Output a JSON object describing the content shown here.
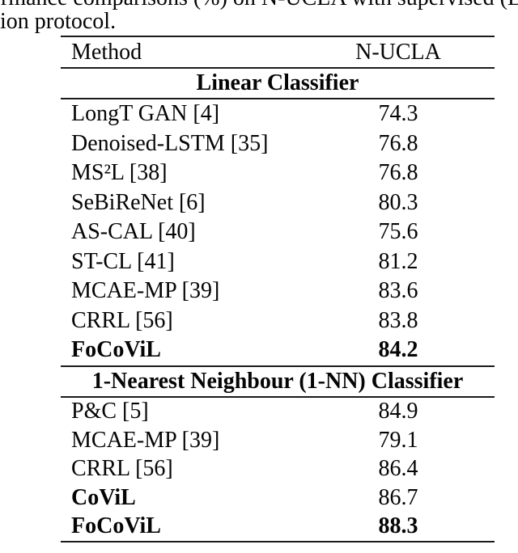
{
  "caption": {
    "line1": "rmance comparisons (%) on N-UCLA with supervised (Linea",
    "line2": "ion protocol."
  },
  "table": {
    "header": {
      "method": "Method",
      "dataset": "N-UCLA"
    },
    "sections": [
      {
        "title": "Linear Classifier",
        "rows": [
          {
            "method": "LongT GAN [4]",
            "value": "74.3"
          },
          {
            "method": "Denoised-LSTM [35]",
            "value": "76.8"
          },
          {
            "method": "MS²L [38]",
            "value": "76.8"
          },
          {
            "method": "SeBiReNet [6]",
            "value": "80.3"
          },
          {
            "method": "AS-CAL [40]",
            "value": "75.6"
          },
          {
            "method": "ST-CL [41]",
            "value": "81.2"
          },
          {
            "method": "MCAE-MP [39]",
            "value": "83.6"
          },
          {
            "method": "CRRL [56]",
            "value": "83.8"
          },
          {
            "method": "FoCoViL",
            "value": "84.2",
            "bold_method": true,
            "bold_value": true
          }
        ]
      },
      {
        "title": "1-Nearest Neighbour (1-NN) Classifier",
        "rows": [
          {
            "method": "P&C [5]",
            "value": "84.9"
          },
          {
            "method": "MCAE-MP [39]",
            "value": "79.1"
          },
          {
            "method": "CRRL [56]",
            "value": "86.4"
          },
          {
            "method": "CoViL",
            "value": "86.7",
            "bold_method": true
          },
          {
            "method": "FoCoViL",
            "value": "88.3",
            "bold_method": true,
            "bold_value": true
          }
        ]
      }
    ]
  },
  "colors": {
    "background": "#ffffff",
    "text": "#050505",
    "rule": "#1a1a1a"
  }
}
